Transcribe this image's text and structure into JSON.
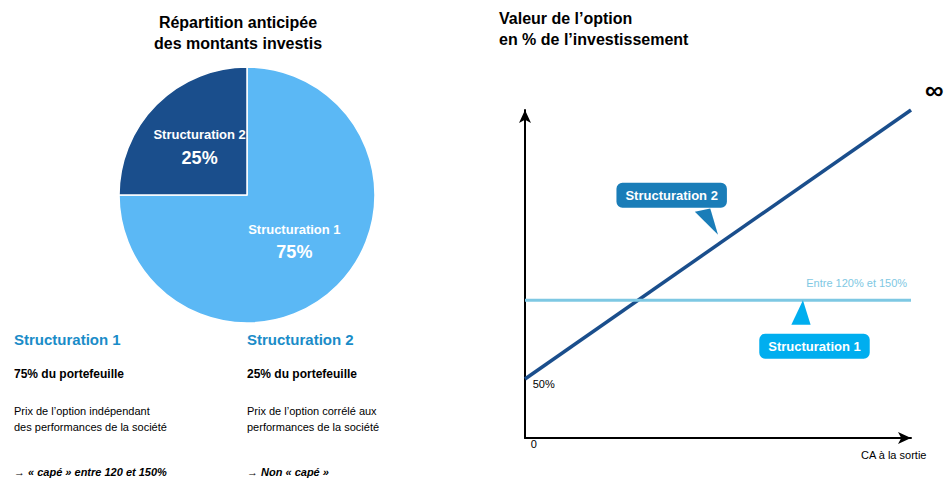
{
  "chart_data": [
    {
      "type": "pie",
      "title": "Répartition anticipée\ndes montants investis",
      "categories": [
        "Structuration 1",
        "Structuration 2"
      ],
      "values": [
        75,
        25
      ],
      "value_labels": [
        "75%",
        "25%"
      ],
      "colors": [
        "#5BB8F5",
        "#1A4E8C"
      ],
      "data_labels": true,
      "annotations": [
        {
          "text": "Structuration 1",
          "color": "#1A8CC8"
        },
        {
          "text": "75% du portefeuille"
        },
        {
          "text": "Prix de l’option indépendant\ndes performances de la société"
        },
        {
          "text": "→ « capé » entre 120 et 150%"
        },
        {
          "text": "Structuration 2",
          "color": "#1A8CC8"
        },
        {
          "text": "25% du portefeuille"
        },
        {
          "text": "Prix de l’option corrélé aux\nperformances de la société"
        },
        {
          "text": "→ Non « capé »"
        }
      ]
    },
    {
      "type": "line",
      "title": "Valeur de l’option\nen % de l’investissement",
      "x": [
        0,
        10
      ],
      "xlim": [
        0,
        10
      ],
      "ylim": [
        0,
        10
      ],
      "tick_labels": false,
      "grid": false,
      "series": [
        {
          "color": "#1A4E8C",
          "values": [
            1.8,
            10
          ]
        },
        {
          "color": "#7EC8E3",
          "values": [
            4.2,
            4.2
          ]
        }
      ],
      "annotations": [
        {
          "text": "Entre 120% et 150%",
          "color": "#7EC8E3"
        },
        {
          "text": "50%"
        },
        {
          "text": "0"
        },
        {
          "text": "CA à la sortie"
        },
        {
          "text": "∞"
        },
        {
          "text": "Structuration 2",
          "color": "#1A7DB8"
        },
        {
          "text": "Structuration 1",
          "color": "#00AEEF"
        }
      ]
    }
  ]
}
